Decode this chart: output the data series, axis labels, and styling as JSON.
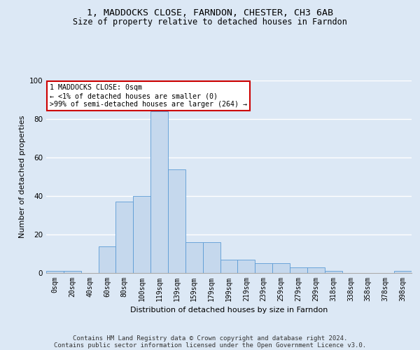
{
  "title1": "1, MADDOCKS CLOSE, FARNDON, CHESTER, CH3 6AB",
  "title2": "Size of property relative to detached houses in Farndon",
  "xlabel": "Distribution of detached houses by size in Farndon",
  "ylabel": "Number of detached properties",
  "bar_color": "#c5d8ed",
  "bar_edge_color": "#5b9bd5",
  "bg_color": "#dce8f5",
  "fig_bg_color": "#dce8f5",
  "annotation_text": "1 MADDOCKS CLOSE: 0sqm\n← <1% of detached houses are smaller (0)\n>99% of semi-detached houses are larger (264) →",
  "footer1": "Contains HM Land Registry data © Crown copyright and database right 2024.",
  "footer2": "Contains public sector information licensed under the Open Government Licence v3.0.",
  "bins": [
    "0sqm",
    "20sqm",
    "40sqm",
    "60sqm",
    "80sqm",
    "100sqm",
    "119sqm",
    "139sqm",
    "159sqm",
    "179sqm",
    "199sqm",
    "219sqm",
    "239sqm",
    "259sqm",
    "279sqm",
    "299sqm",
    "318sqm",
    "338sqm",
    "358sqm",
    "378sqm",
    "398sqm"
  ],
  "values": [
    1,
    1,
    0,
    14,
    37,
    40,
    84,
    54,
    16,
    16,
    7,
    7,
    5,
    5,
    3,
    3,
    1,
    0,
    0,
    0,
    1
  ],
  "ylim": [
    0,
    100
  ],
  "yticks": [
    0,
    20,
    40,
    60,
    80,
    100
  ],
  "grid_color": "#ffffff",
  "annotation_box_color": "#ffffff",
  "annotation_box_edge": "#cc0000",
  "title1_fontsize": 9.5,
  "title2_fontsize": 8.5,
  "xlabel_fontsize": 8,
  "ylabel_fontsize": 8,
  "tick_fontsize": 7,
  "footer_fontsize": 6.5
}
